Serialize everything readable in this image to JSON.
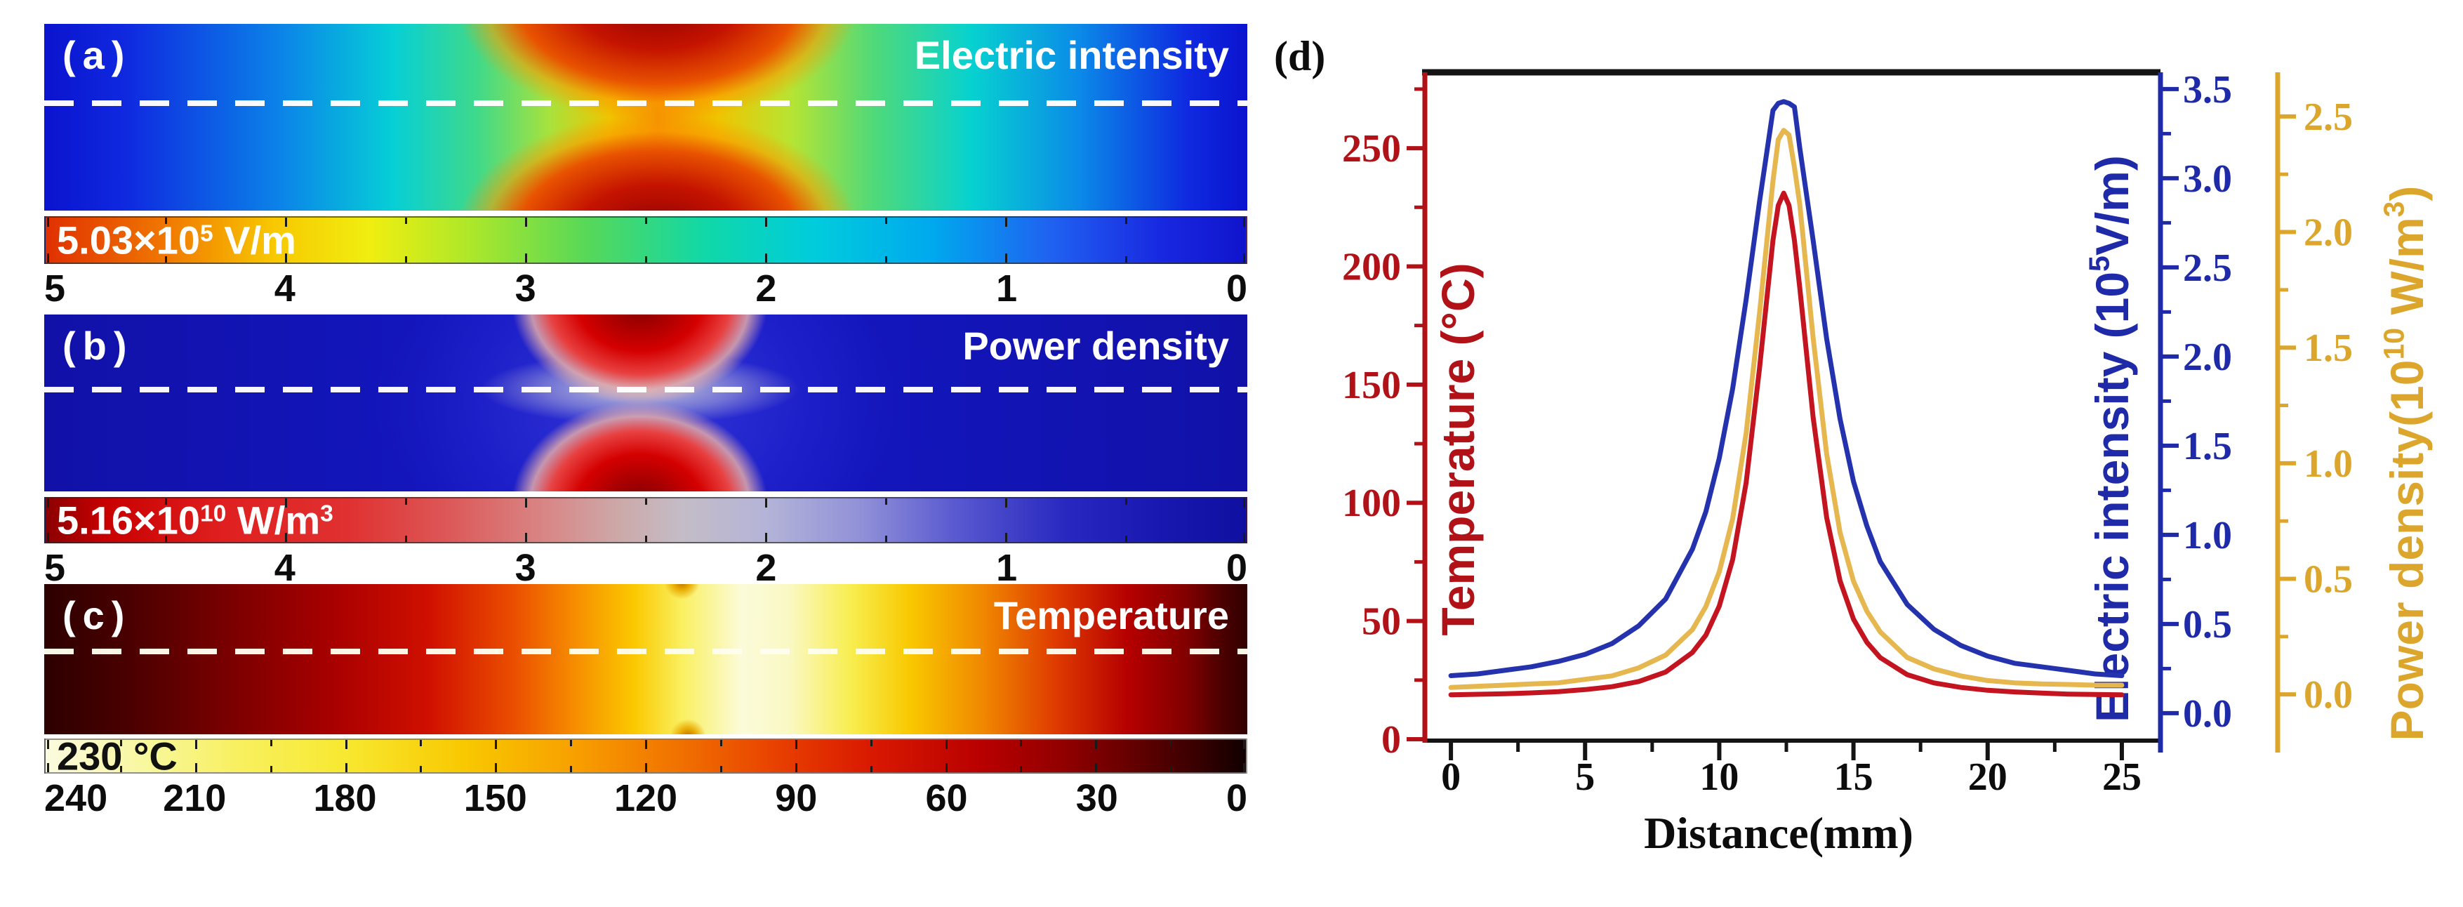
{
  "panels": {
    "a": {
      "label": "(a)",
      "title": "Electric intensity",
      "colorbar_label": [
        {
          "t": "5.03×10"
        },
        {
          "t": "5",
          "sup": true
        },
        {
          "t": " V/m"
        }
      ],
      "scale_ticks": [
        "5",
        "4",
        "3",
        "2",
        "1",
        "0"
      ]
    },
    "b": {
      "label": "(b)",
      "title": "Power density",
      "colorbar_label": [
        {
          "t": "5.16×10"
        },
        {
          "t": "10",
          "sup": true
        },
        {
          "t": " W/m"
        },
        {
          "t": "3",
          "sup": true
        }
      ],
      "scale_ticks": [
        "5",
        "4",
        "3",
        "2",
        "1",
        "0"
      ]
    },
    "c": {
      "label": "(c)",
      "title": "Temperature",
      "colorbar_label": [
        {
          "t": "230 °C"
        }
      ],
      "scale_ticks": [
        "240",
        "210",
        "180",
        "150",
        "120",
        "90",
        "60",
        "30",
        "0"
      ]
    }
  },
  "chart_data": {
    "type": "line",
    "panel_label": "(d)",
    "xlabel": "Distance(mm)",
    "x_ticks": [
      0,
      5,
      10,
      15,
      20,
      25
    ],
    "x_minor_step": 2.5,
    "x_range": [
      -0.97,
      26.44
    ],
    "grid": false,
    "legend": "none",
    "axes": {
      "temperature": {
        "label": [
          {
            "t": "Temperature (°C)"
          }
        ],
        "color": "#b01217",
        "ticks": [
          0,
          50,
          100,
          150,
          200,
          250
        ],
        "minor_step": 25,
        "range": [
          -0.6,
          282.1
        ],
        "decimals": 0,
        "side": "left"
      },
      "electric": {
        "label": [
          {
            "t": "Electric intensity (10"
          },
          {
            "t": "5",
            "sup": true
          },
          {
            "t": "V/m)"
          }
        ],
        "color": "#1e2aa8",
        "ticks": [
          0,
          0.5,
          1.0,
          1.5,
          2.0,
          2.5,
          3.0,
          3.5
        ],
        "minor_step": 0.25,
        "range": [
          -0.154,
          3.594
        ],
        "decimals": 1,
        "side": "right1"
      },
      "power": {
        "label": [
          {
            "t": "Power density(10"
          },
          {
            "t": "10",
            "sup": true
          },
          {
            "t": " W/m"
          },
          {
            "t": "3",
            "sup": true
          },
          {
            "t": ")"
          }
        ],
        "color": "#dca62c",
        "ticks": [
          0,
          0.5,
          1.0,
          1.5,
          2.0,
          2.5
        ],
        "minor_step": 0.25,
        "range": [
          -0.2,
          2.691
        ],
        "decimals": 1,
        "side": "right2"
      }
    },
    "x": [
      0,
      1,
      2,
      3,
      4,
      5,
      6,
      7,
      8,
      9,
      9.5,
      10,
      10.5,
      11,
      11.5,
      12,
      12.2,
      12.4,
      12.6,
      12.8,
      13,
      13.5,
      14,
      14.5,
      15,
      15.5,
      16,
      17,
      18,
      19,
      20,
      21,
      22,
      23,
      24,
      25
    ],
    "series": [
      {
        "name": "Electric intensity",
        "axis": "electric",
        "color": "#2433ad",
        "values": [
          0.21,
          0.22,
          0.24,
          0.26,
          0.29,
          0.33,
          0.39,
          0.49,
          0.64,
          0.92,
          1.13,
          1.43,
          1.82,
          2.32,
          2.87,
          3.38,
          3.42,
          3.43,
          3.42,
          3.4,
          3.17,
          2.65,
          2.1,
          1.65,
          1.3,
          1.05,
          0.85,
          0.61,
          0.47,
          0.38,
          0.32,
          0.28,
          0.26,
          0.24,
          0.22,
          0.21
        ]
      },
      {
        "name": "Power density",
        "axis": "power",
        "color": "#e6b74f",
        "values": [
          0.03,
          0.035,
          0.04,
          0.045,
          0.05,
          0.065,
          0.08,
          0.115,
          0.17,
          0.28,
          0.38,
          0.53,
          0.76,
          1.13,
          1.65,
          2.22,
          2.4,
          2.44,
          2.42,
          2.28,
          2.12,
          1.54,
          1.04,
          0.7,
          0.49,
          0.36,
          0.27,
          0.16,
          0.11,
          0.08,
          0.06,
          0.05,
          0.045,
          0.043,
          0.04,
          0.04
        ]
      },
      {
        "name": "Temperature",
        "axis": "temperature",
        "color": "#c41420",
        "values": [
          18.8,
          19.0,
          19.2,
          19.6,
          20.1,
          21.0,
          22.2,
          24.4,
          28.4,
          36.7,
          44.0,
          56.3,
          76.0,
          108.5,
          157.0,
          211.0,
          225.8,
          231.0,
          225.8,
          211.0,
          191.0,
          136.0,
          93.8,
          67.0,
          50.8,
          41.0,
          34.5,
          27.3,
          23.8,
          21.9,
          20.7,
          20.0,
          19.5,
          19.1,
          18.9,
          18.8
        ]
      }
    ]
  }
}
